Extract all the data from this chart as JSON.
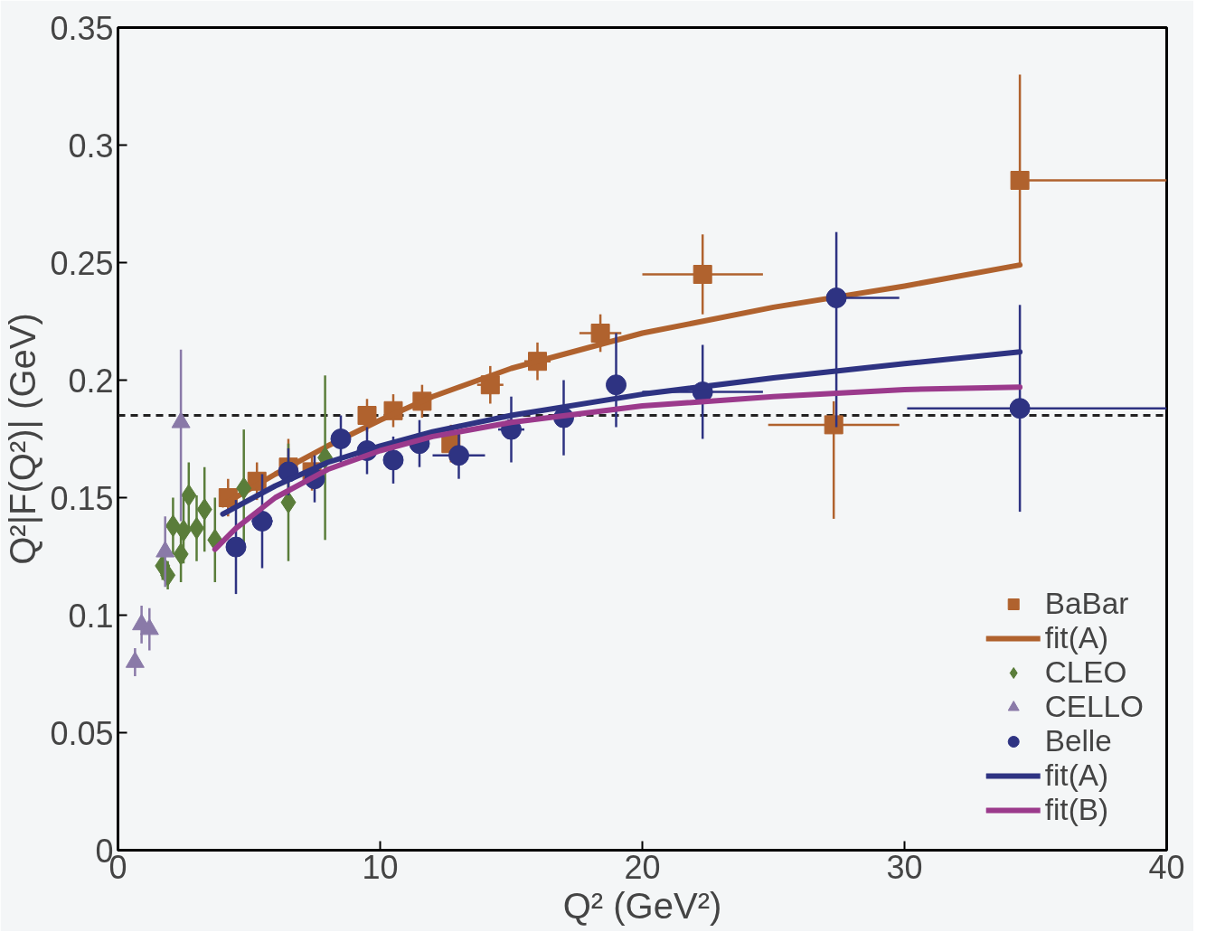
{
  "chart_data": {
    "type": "scatter",
    "xlabel": "Q² (GeV²)",
    "ylabel": "Q²|F(Q²)| (GeV)",
    "xlim": [
      0,
      40
    ],
    "ylim": [
      0,
      0.35
    ],
    "xticks": [
      0,
      10,
      20,
      30,
      40
    ],
    "yticks": [
      0,
      0.05,
      0.1,
      0.15,
      0.2,
      0.25,
      0.3,
      0.35
    ],
    "grid": false,
    "legend": "bottom right",
    "ref_lines": [
      {
        "axis": "y",
        "value": 0.185,
        "color": "#222222",
        "line_style": "dashed"
      }
    ],
    "series": [
      {
        "name": "BaBar",
        "marker": "square",
        "color": "#b0622e",
        "x": [
          4.2,
          5.3,
          6.5,
          7.4,
          9.5,
          10.5,
          11.6,
          12.7,
          14.2,
          16.0,
          18.4,
          22.3,
          27.3,
          34.4
        ],
        "values": [
          0.15,
          0.157,
          0.163,
          0.161,
          0.185,
          0.187,
          0.191,
          0.173,
          0.198,
          0.208,
          0.22,
          0.245,
          0.181,
          0.285
        ],
        "errors": [
          0.008,
          0.008,
          0.012,
          0.008,
          0.007,
          0.007,
          0.007,
          0.008,
          0.008,
          0.008,
          0.008,
          0.017,
          [
            0.141,
            0.191
          ],
          [
            0.249,
            0.33
          ]
        ],
        "xerrors": [
          null,
          null,
          null,
          null,
          null,
          null,
          null,
          null,
          0.5,
          0.5,
          0.8,
          2.3,
          2.5,
          [
            34.4,
            40
          ]
        ]
      },
      {
        "name": "fit(A)",
        "type": "line",
        "color": "#b0622e",
        "x": [
          4,
          6,
          8,
          10,
          12,
          15,
          20,
          25,
          30,
          34.4
        ],
        "values": [
          0.147,
          0.16,
          0.172,
          0.183,
          0.193,
          0.205,
          0.22,
          0.231,
          0.24,
          0.249
        ]
      },
      {
        "name": "CLEO",
        "marker": "diamond",
        "color": "#5a7d3a",
        "x": [
          1.7,
          1.9,
          2.1,
          2.4,
          2.5,
          2.7,
          3.0,
          3.3,
          3.7,
          4.8,
          6.5,
          7.9
        ],
        "values": [
          0.121,
          0.117,
          0.138,
          0.126,
          0.136,
          0.151,
          0.137,
          0.145,
          0.132,
          0.154,
          0.148,
          0.167
        ],
        "errors": [
          0.006,
          0.006,
          0.012,
          0.012,
          0.014,
          0.014,
          0.014,
          0.018,
          0.018,
          0.025,
          0.025,
          0.035
        ]
      },
      {
        "name": "CELLO",
        "marker": "triangle",
        "color": "#8a7aa8",
        "x": [
          0.65,
          0.9,
          1.2,
          1.8,
          2.4
        ],
        "values": [
          0.08,
          0.096,
          0.094,
          0.127,
          0.182
        ],
        "errors": [
          0.006,
          0.008,
          0.009,
          0.015,
          [
            0.14,
            0.213
          ]
        ]
      },
      {
        "name": "Belle",
        "marker": "circle",
        "color": "#2e3382",
        "x": [
          4.5,
          5.5,
          6.5,
          7.5,
          8.5,
          9.5,
          10.5,
          11.5,
          13.0,
          15.0,
          17.0,
          19.0,
          22.3,
          27.4,
          34.4
        ],
        "values": [
          0.129,
          0.14,
          0.161,
          0.158,
          0.175,
          0.17,
          0.166,
          0.173,
          0.168,
          0.179,
          0.184,
          0.198,
          0.195,
          0.235,
          0.188
        ],
        "errors": [
          0.02,
          0.02,
          0.01,
          0.01,
          0.01,
          0.01,
          0.01,
          0.01,
          0.01,
          0.014,
          0.016,
          [
            0.18,
            0.22
          ],
          0.02,
          [
            0.18,
            0.263
          ],
          0.044
        ],
        "xerrors": [
          null,
          0.4,
          null,
          null,
          null,
          null,
          null,
          null,
          1.0,
          0.5,
          null,
          null,
          2.3,
          [
            27.4,
            29.8
          ],
          [
            30.1,
            40
          ]
        ]
      },
      {
        "name": "fit(A)",
        "type": "line",
        "color": "#2e3382",
        "x": [
          4,
          6,
          8,
          10,
          12,
          15,
          20,
          25,
          30,
          34.4
        ],
        "values": [
          0.143,
          0.155,
          0.165,
          0.172,
          0.178,
          0.185,
          0.194,
          0.201,
          0.207,
          0.212
        ]
      },
      {
        "name": "fit(B)",
        "type": "line",
        "color": "#9b3a8c",
        "x": [
          3.7,
          4.5,
          6,
          8,
          10,
          12,
          15,
          20,
          25,
          30,
          34.4
        ],
        "values": [
          0.128,
          0.137,
          0.15,
          0.162,
          0.17,
          0.176,
          0.182,
          0.189,
          0.193,
          0.196,
          0.197
        ]
      }
    ]
  }
}
